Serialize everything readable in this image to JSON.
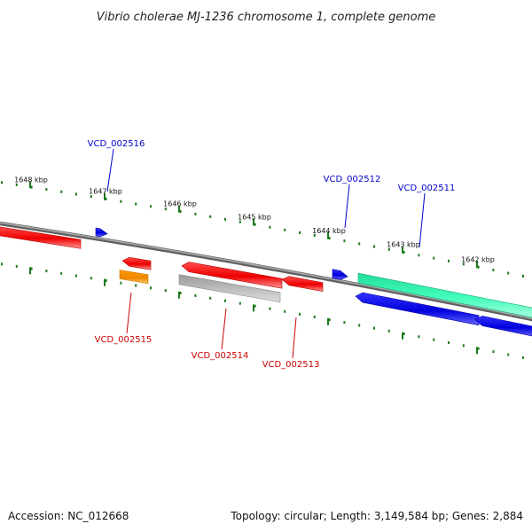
{
  "title": "Vibrio cholerae MJ-1236 chromosome 1, complete genome",
  "footer": {
    "accession": "Accession: NC_012668",
    "summary": "Topology: circular; Length: 3,149,584 bp; Genes: 2,884"
  },
  "colors": {
    "backbone": "#808080",
    "tick": "#1a7a1a",
    "forward_label": "#0000cc",
    "reverse_label": "#cc0000",
    "red_gene": "#ff0000",
    "blue_gene": "#0000ee",
    "teal_gene": "#33ffaa",
    "orange_gene": "#ff9900",
    "grey_gene": "#b3b3b3"
  },
  "scale": {
    "unit": "kbp",
    "ticks": [
      {
        "kbp": 1648,
        "label": "1648 kbp"
      },
      {
        "kbp": 1647,
        "label": "1647 kbp"
      },
      {
        "kbp": 1646,
        "label": "1646 kbp"
      },
      {
        "kbp": 1645,
        "label": "1645 kbp"
      },
      {
        "kbp": 1644,
        "label": "1644 kbp"
      },
      {
        "kbp": 1643,
        "label": "1643 kbp"
      },
      {
        "kbp": 1642,
        "label": "1642 kbp"
      }
    ]
  },
  "labeled_genes": [
    {
      "id": "VCD_002516",
      "strand": "forward",
      "color": "blue_gene"
    },
    {
      "id": "VCD_002512",
      "strand": "forward",
      "color": "blue_gene"
    },
    {
      "id": "VCD_002511",
      "strand": "forward",
      "color": "teal_gene"
    },
    {
      "id": "VCD_002515",
      "strand": "reverse",
      "color": "orange_gene"
    },
    {
      "id": "VCD_002514",
      "strand": "reverse",
      "color": "grey_gene"
    },
    {
      "id": "VCD_002513",
      "strand": "reverse",
      "color": "red_gene"
    }
  ]
}
